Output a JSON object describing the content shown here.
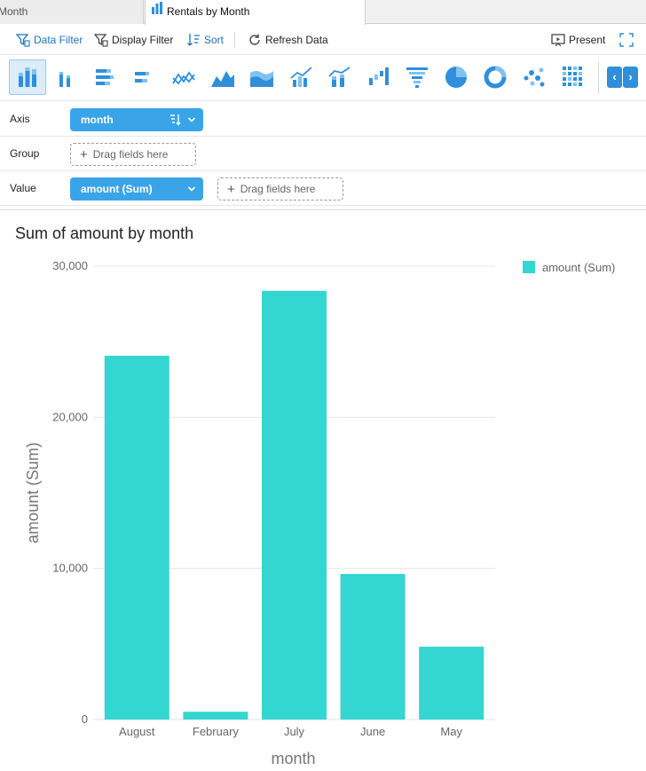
{
  "tabs": {
    "inactive_label": "Month",
    "active_label": "Rentals by Month"
  },
  "toolbar": {
    "data_filter": "Data Filter",
    "display_filter": "Display Filter",
    "sort": "Sort",
    "refresh": "Refresh Data",
    "present": "Present"
  },
  "chart_types": [
    "stacked-column-icon",
    "column-icon",
    "stacked-bar-icon",
    "bar-icon",
    "line-icon",
    "area-icon",
    "stacked-area-icon",
    "line-column-icon",
    "combo-column-line-icon",
    "waterfall-icon",
    "funnel-icon",
    "pie-icon",
    "donut-icon",
    "scatter-icon",
    "heatmap-icon"
  ],
  "fields": {
    "axis_label": "Axis",
    "axis_field": "month",
    "group_label": "Group",
    "group_placeholder": "Drag fields here",
    "value_label": "Value",
    "value_field": "amount (Sum)",
    "value_placeholder": "Drag fields here"
  },
  "colors": {
    "bar": "#33d6d1",
    "accent": "#3aa4e8",
    "grid": "#e6e6e6"
  },
  "chart_data": {
    "type": "bar",
    "title": "Sum of amount by month",
    "categories": [
      "August",
      "February",
      "July",
      "June",
      "May"
    ],
    "series": [
      {
        "name": "amount (Sum)",
        "values": [
          24070,
          514,
          28368,
          9632,
          4824
        ]
      }
    ],
    "xlabel": "month",
    "ylabel": "amount (Sum)",
    "ylim": [
      0,
      30000
    ],
    "yticks": [
      "0",
      "10,000",
      "20,000",
      "30,000"
    ],
    "ytick_values": [
      0,
      10000,
      20000,
      30000
    ],
    "grid": true,
    "legend": "top-right"
  }
}
